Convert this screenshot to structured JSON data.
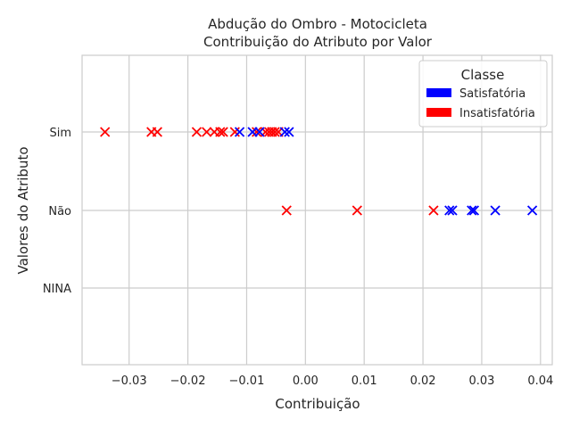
{
  "chart_data": {
    "type": "scatter",
    "title_line1": "Abdução do Ombro - Motocicleta",
    "title_line2": "Contribuição do Atributo por Valor",
    "xlabel": "Contribuição",
    "ylabel": "Valores do Atributo",
    "categories": [
      "Sim",
      "Não",
      "NINA"
    ],
    "xlim": [
      -0.038,
      0.042
    ],
    "xticks": [
      -0.03,
      -0.02,
      -0.01,
      0.0,
      0.01,
      0.02,
      0.03,
      0.04
    ],
    "xtick_labels": [
      "−0.03",
      "−0.02",
      "−0.01",
      "0.00",
      "0.01",
      "0.02",
      "0.03",
      "0.04"
    ],
    "grid": true,
    "legend": {
      "title": "Classe",
      "placement": "top-right",
      "entries": [
        {
          "label": "Satisfatória",
          "color": "#0000ff"
        },
        {
          "label": "Insatisfatória",
          "color": "#ff0000"
        }
      ]
    },
    "marker": "x",
    "series": [
      {
        "name": "Satisfatória",
        "color": "#0000ff",
        "points": [
          {
            "x": -0.0112,
            "y": "Sim"
          },
          {
            "x": -0.009,
            "y": "Sim"
          },
          {
            "x": -0.0078,
            "y": "Sim"
          },
          {
            "x": -0.0035,
            "y": "Sim"
          },
          {
            "x": -0.0028,
            "y": "Sim"
          },
          {
            "x": 0.0245,
            "y": "Não"
          },
          {
            "x": 0.025,
            "y": "Não"
          },
          {
            "x": 0.0283,
            "y": "Não"
          },
          {
            "x": 0.0287,
            "y": "Não"
          },
          {
            "x": 0.0323,
            "y": "Não"
          },
          {
            "x": 0.0386,
            "y": "Não"
          }
        ]
      },
      {
        "name": "Insatisfatória",
        "color": "#ff0000",
        "points": [
          {
            "x": -0.0341,
            "y": "Sim"
          },
          {
            "x": -0.0262,
            "y": "Sim"
          },
          {
            "x": -0.0252,
            "y": "Sim"
          },
          {
            "x": -0.0185,
            "y": "Sim"
          },
          {
            "x": -0.0168,
            "y": "Sim"
          },
          {
            "x": -0.0155,
            "y": "Sim"
          },
          {
            "x": -0.0145,
            "y": "Sim"
          },
          {
            "x": -0.014,
            "y": "Sim"
          },
          {
            "x": -0.012,
            "y": "Sim"
          },
          {
            "x": -0.0083,
            "y": "Sim"
          },
          {
            "x": -0.0068,
            "y": "Sim"
          },
          {
            "x": -0.0062,
            "y": "Sim"
          },
          {
            "x": -0.0057,
            "y": "Sim"
          },
          {
            "x": -0.0052,
            "y": "Sim"
          },
          {
            "x": -0.0046,
            "y": "Sim"
          },
          {
            "x": -0.0032,
            "y": "Não"
          },
          {
            "x": 0.0088,
            "y": "Não"
          },
          {
            "x": 0.0218,
            "y": "Não"
          }
        ]
      }
    ]
  }
}
